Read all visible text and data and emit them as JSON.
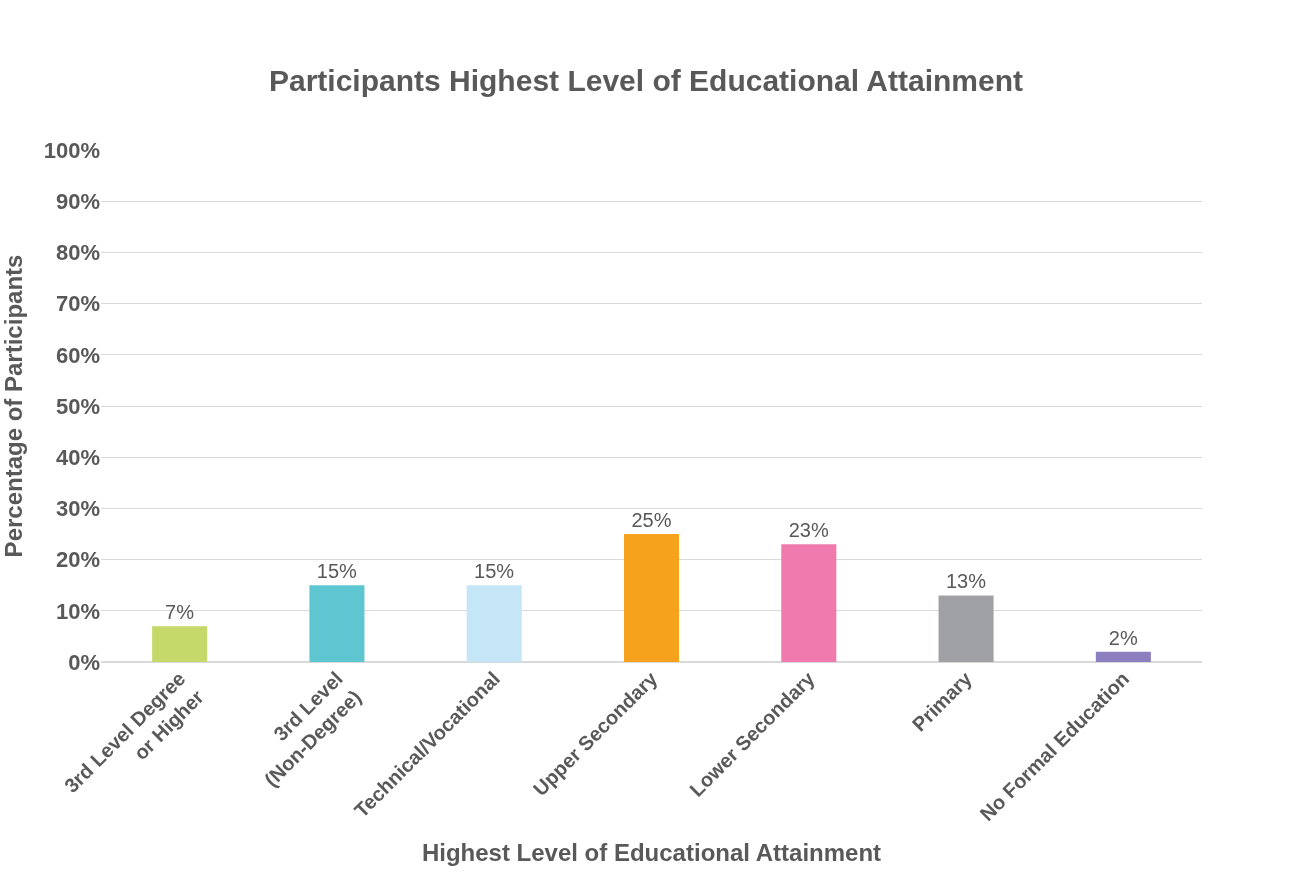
{
  "chart_data": {
    "type": "bar",
    "title": "Participants Highest Level of Educational Attainment",
    "xlabel": "Highest Level of Educational Attainment",
    "ylabel": "Percentage of Participants",
    "categories": [
      "3rd Level Degree\nor Higher",
      "3rd Level\n(Non-Degree)",
      "Technical/Vocational",
      "Upper Secondary",
      "Lower Secondary",
      "Primary",
      "No Formal Education"
    ],
    "values": [
      7,
      15,
      15,
      25,
      23,
      13,
      2
    ],
    "colors": [
      "#c5d96a",
      "#5ec6d0",
      "#c5e6f7",
      "#f7a21c",
      "#f07aae",
      "#a0a1a4",
      "#8c7fc0"
    ],
    "value_labels": [
      "7%",
      "15%",
      "15%",
      "25%",
      "23%",
      "13%",
      "2%"
    ],
    "ylim": [
      0,
      100
    ],
    "yticks": [
      {
        "value": 0,
        "label": "0%"
      },
      {
        "value": 10,
        "label": "10%"
      },
      {
        "value": 20,
        "label": "20%"
      },
      {
        "value": 30,
        "label": "30%"
      },
      {
        "value": 40,
        "label": "40%"
      },
      {
        "value": 50,
        "label": "50%"
      },
      {
        "value": 60,
        "label": "60%"
      },
      {
        "value": 70,
        "label": "70%"
      },
      {
        "value": 80,
        "label": "80%"
      },
      {
        "value": 90,
        "label": "90%"
      },
      {
        "value": 100,
        "label": "100%"
      }
    ],
    "grid": "y",
    "legend": false
  }
}
